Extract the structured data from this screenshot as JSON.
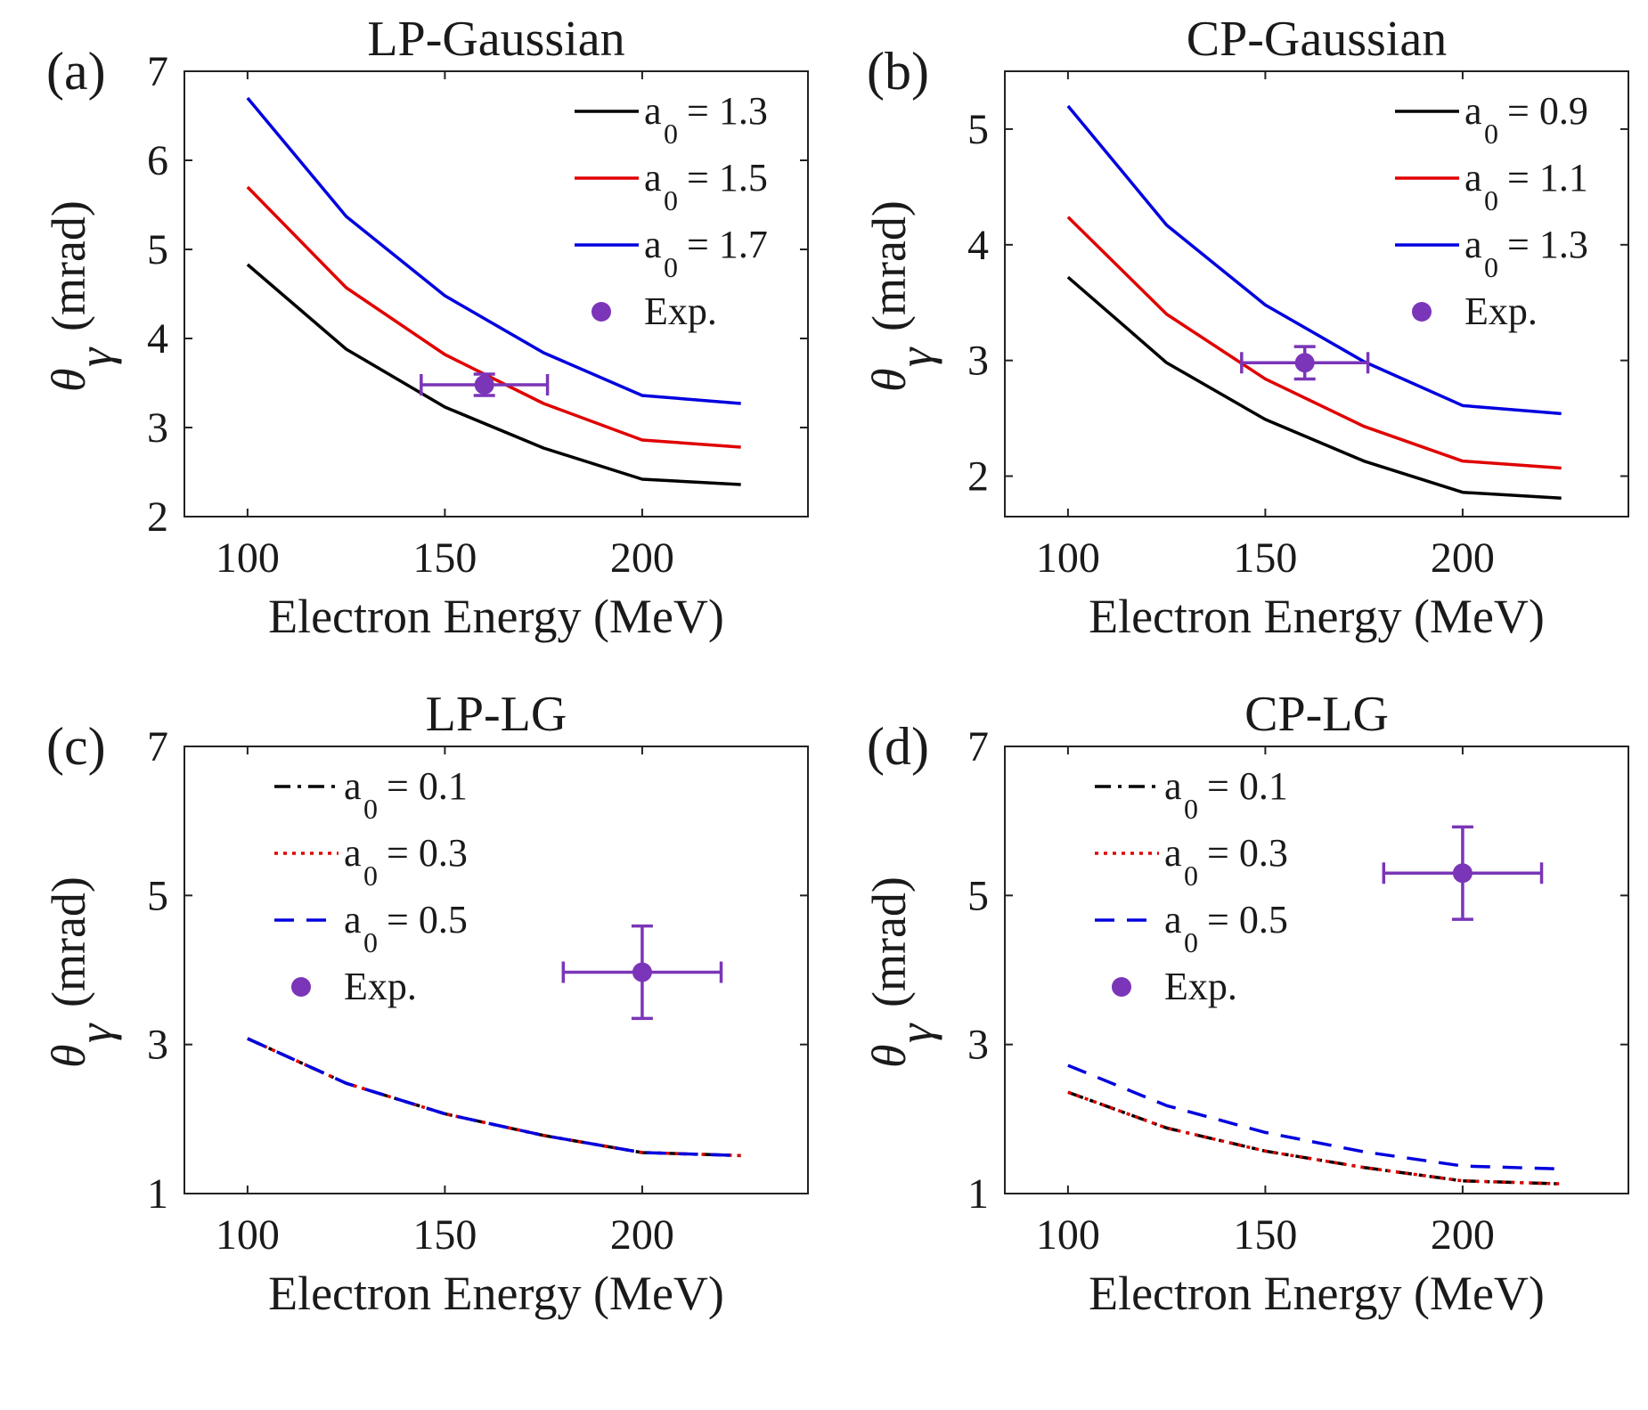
{
  "figure": {
    "description_free": true
  },
  "chart_data": [
    {
      "type": "line",
      "panel_label": "(a)",
      "title": "LP-Gaussian",
      "xlabel": "Electron Energy (MeV)",
      "ylabel_symbol": "θ",
      "ylabel_sub": "γ",
      "ylabel_unit": "(mrad)",
      "xlim": [
        84,
        242
      ],
      "ylim": [
        2,
        7
      ],
      "xticks": [
        100,
        150,
        200
      ],
      "yticks": [
        2,
        3,
        4,
        5,
        6,
        7
      ],
      "x": [
        100,
        125,
        150,
        175,
        200,
        225
      ],
      "series": [
        {
          "name": "a = 1.3",
          "label_a": "a",
          "label_sub": "0",
          "label_rest": "= 1.3",
          "color": "#000000",
          "style": "solid",
          "values": [
            4.83,
            3.88,
            3.23,
            2.77,
            2.42,
            2.36
          ]
        },
        {
          "name": "a = 1.5",
          "label_a": "a",
          "label_sub": "0",
          "label_rest": "= 1.5",
          "color": "#e00000",
          "style": "solid",
          "values": [
            5.7,
            4.57,
            3.82,
            3.27,
            2.86,
            2.78
          ]
        },
        {
          "name": "a = 1.7",
          "label_a": "a",
          "label_sub": "0",
          "label_rest": "= 1.7",
          "color": "#0000e0",
          "style": "solid",
          "values": [
            6.7,
            5.37,
            4.48,
            3.84,
            3.36,
            3.27
          ]
        }
      ],
      "exp": {
        "label": "Exp.",
        "color": "#7b35b8",
        "x": 160,
        "y": 3.48,
        "xerr": 16,
        "yerr": 0.12
      }
    },
    {
      "type": "line",
      "panel_label": "(b)",
      "title": "CP-Gaussian",
      "xlabel": "Electron Energy (MeV)",
      "ylabel_symbol": "θ",
      "ylabel_sub": "γ",
      "ylabel_unit": "(mrad)",
      "xlim": [
        84,
        242
      ],
      "ylim": [
        1.65,
        5.5
      ],
      "xticks": [
        100,
        150,
        200
      ],
      "yticks": [
        2,
        3,
        4,
        5
      ],
      "x": [
        100,
        125,
        150,
        175,
        200,
        225
      ],
      "series": [
        {
          "name": "a = 0.9",
          "label_a": "a",
          "label_sub": "0",
          "label_rest": "= 0.9",
          "color": "#000000",
          "style": "solid",
          "values": [
            3.72,
            2.98,
            2.49,
            2.13,
            1.86,
            1.81
          ]
        },
        {
          "name": "a = 1.1",
          "label_a": "a",
          "label_sub": "0",
          "label_rest": "= 1.1",
          "color": "#e00000",
          "style": "solid",
          "values": [
            4.24,
            3.4,
            2.84,
            2.43,
            2.13,
            2.07
          ]
        },
        {
          "name": "a = 1.3",
          "label_a": "a",
          "label_sub": "0",
          "label_rest": "= 1.3",
          "color": "#0000e0",
          "style": "solid",
          "values": [
            5.2,
            4.17,
            3.48,
            2.99,
            2.61,
            2.54
          ]
        }
      ],
      "exp": {
        "label": "Exp.",
        "color": "#7b35b8",
        "x": 160,
        "y": 2.98,
        "xerr": 16,
        "yerr": 0.14
      }
    },
    {
      "type": "line",
      "panel_label": "(c)",
      "title": "LP-LG",
      "xlabel": "Electron Energy (MeV)",
      "ylabel_symbol": "θ",
      "ylabel_sub": "γ",
      "ylabel_unit": "(mrad)",
      "xlim": [
        84,
        242
      ],
      "ylim": [
        1,
        7
      ],
      "xticks": [
        100,
        150,
        200
      ],
      "yticks": [
        1,
        3,
        5,
        7
      ],
      "x": [
        100,
        125,
        150,
        175,
        200,
        225
      ],
      "series": [
        {
          "name": "a = 0.1",
          "label_a": "a",
          "label_sub": "0",
          "label_rest": "= 0.1",
          "color": "#000000",
          "style": "dashdot",
          "values": [
            3.08,
            2.48,
            2.07,
            1.78,
            1.55,
            1.51
          ]
        },
        {
          "name": "a = 0.3",
          "label_a": "a",
          "label_sub": "0",
          "label_rest": "= 0.3",
          "color": "#e00000",
          "style": "dotted",
          "values": [
            3.08,
            2.48,
            2.07,
            1.78,
            1.55,
            1.51
          ]
        },
        {
          "name": "a = 0.5",
          "label_a": "a",
          "label_sub": "0",
          "label_rest": "= 0.5",
          "color": "#0000e0",
          "style": "dashed",
          "values": [
            3.08,
            2.48,
            2.07,
            1.78,
            1.55,
            1.51
          ]
        }
      ],
      "exp": {
        "label": "Exp.",
        "color": "#7b35b8",
        "x": 200,
        "y": 3.97,
        "xerr": 20,
        "yerr": 0.62
      }
    },
    {
      "type": "line",
      "panel_label": "(d)",
      "title": "CP-LG",
      "xlabel": "Electron Energy (MeV)",
      "ylabel_symbol": "θ",
      "ylabel_sub": "γ",
      "ylabel_unit": "(mrad)",
      "xlim": [
        84,
        242
      ],
      "ylim": [
        1,
        7
      ],
      "xticks": [
        100,
        150,
        200
      ],
      "yticks": [
        1,
        3,
        5,
        7
      ],
      "x": [
        100,
        125,
        150,
        175,
        200,
        225
      ],
      "series": [
        {
          "name": "a = 0.1",
          "label_a": "a",
          "label_sub": "0",
          "label_rest": "= 0.1",
          "color": "#000000",
          "style": "dashdot",
          "values": [
            2.36,
            1.88,
            1.57,
            1.35,
            1.17,
            1.13
          ]
        },
        {
          "name": "a = 0.3",
          "label_a": "a",
          "label_sub": "0",
          "label_rest": "= 0.3",
          "color": "#e00000",
          "style": "dotted",
          "values": [
            2.36,
            1.88,
            1.57,
            1.35,
            1.17,
            1.13
          ]
        },
        {
          "name": "a = 0.5",
          "label_a": "a",
          "label_sub": "0",
          "label_rest": "= 0.5",
          "color": "#0000e0",
          "style": "dashed",
          "values": [
            2.72,
            2.18,
            1.82,
            1.56,
            1.37,
            1.33
          ]
        }
      ],
      "exp": {
        "label": "Exp.",
        "color": "#7b35b8",
        "x": 200,
        "y": 5.3,
        "xerr": 20,
        "yerr": 0.62
      }
    }
  ]
}
